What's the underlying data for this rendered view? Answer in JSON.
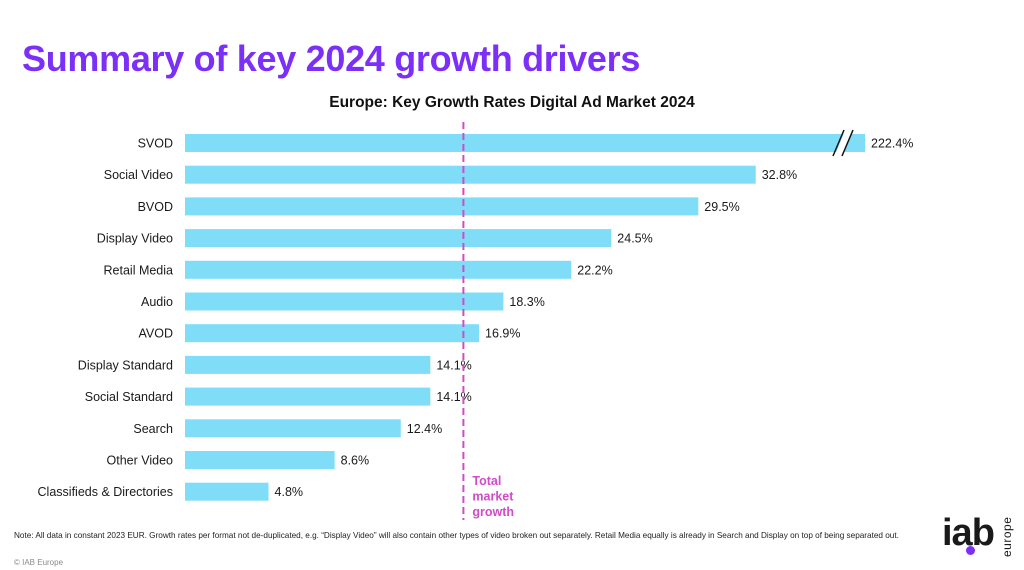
{
  "slide": {
    "title": "Summary of key 2024 growth drivers",
    "footnote": "Note: All data in constant 2023 EUR. Growth rates per format not de-duplicated, e.g. “Display Video” will also contain other types of video broken out separately. Retail Media equally is already in Search and Display on top of being separated out.",
    "copyright": "© IAB Europe"
  },
  "logo": {
    "word": "iab",
    "subtitle": "europe",
    "dot_color": "#7B2FF7"
  },
  "colors": {
    "title": "#7B2FF7",
    "bar": "#7FDDF8",
    "reference_line": "#D24BC8"
  },
  "chart_data": {
    "type": "bar",
    "orientation": "horizontal",
    "title": "Europe: Key Growth Rates Digital Ad Market 2024",
    "categories": [
      "SVOD",
      "Social Video",
      "BVOD",
      "Display Video",
      "Retail Media",
      "Audio",
      "AVOD",
      "Display Standard",
      "Social Standard",
      "Search",
      "Other Video",
      "Classifieds & Directories"
    ],
    "values": [
      222.4,
      32.8,
      29.5,
      24.5,
      22.2,
      18.3,
      16.9,
      14.1,
      14.1,
      12.4,
      8.6,
      4.8
    ],
    "labels": [
      "222.4%",
      "32.8%",
      "29.5%",
      "24.5%",
      "22.2%",
      "18.3%",
      "16.9%",
      "14.1%",
      "14.1%",
      "12.4%",
      "8.6%",
      "4.8%"
    ],
    "axis_break": {
      "category": "SVOD"
    },
    "xlim": [
      0,
      40
    ],
    "grid": false,
    "reference_line": {
      "value": 16.0,
      "label": [
        "Total",
        "market",
        "growth"
      ],
      "style": "dashed"
    }
  }
}
